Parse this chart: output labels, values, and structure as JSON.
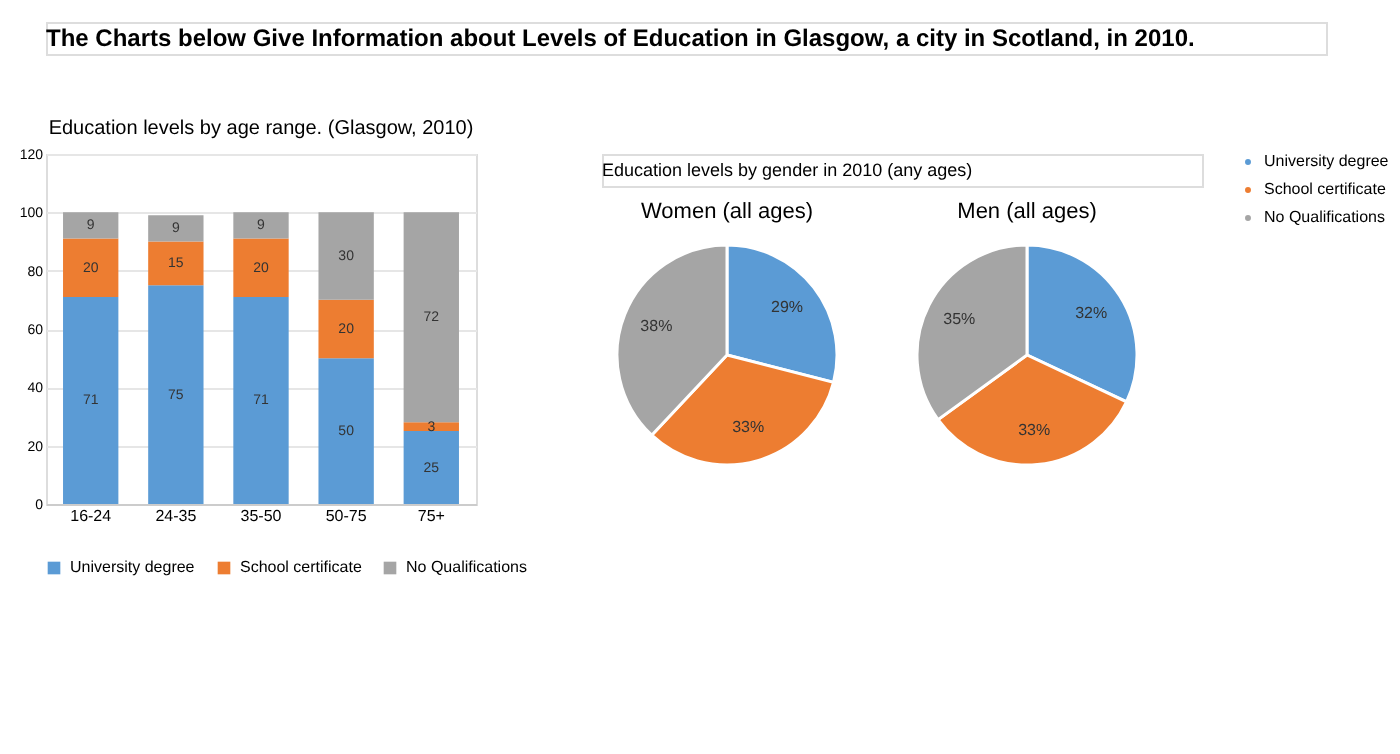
{
  "chart_data": [
    {
      "type": "bar",
      "title": "Education levels by age range. (Glasgow, 2010)",
      "annotations": [
        "The Charts below Give Information about Levels of Education in Glasgow, a city in Scotland, in 2010."
      ],
      "categories": [
        "16-24",
        "24-35",
        "35-50",
        "50-75",
        "75+"
      ],
      "stacked": true,
      "series": [
        {
          "name": "University degree",
          "color": "#5b9bd5",
          "values": [
            71,
            75,
            71,
            50,
            25
          ]
        },
        {
          "name": "School certificate",
          "color": "#ed7d31",
          "values": [
            20,
            15,
            20,
            20,
            3
          ]
        },
        {
          "name": "No Qualifications",
          "color": "#a5a5a5",
          "values": [
            9,
            9,
            9,
            30,
            72
          ]
        }
      ],
      "ylim": [
        0,
        120
      ],
      "yticks": [
        0,
        20,
        40,
        60,
        80,
        100,
        120
      ],
      "grid": "y",
      "legend": "bottom",
      "data_labels": true
    },
    {
      "type": "pie",
      "title": "Women (all ages)",
      "annotations": [
        "Education levels by gender in 2010 (any ages)"
      ],
      "categories": [
        "University degree",
        "School certificate",
        "No Qualifications"
      ],
      "values": [
        29,
        33,
        38
      ],
      "value_labels": [
        "29%",
        "33%",
        "38%"
      ],
      "colors": [
        "#5b9bd5",
        "#ed7d31",
        "#a5a5a5"
      ],
      "legend": "right"
    },
    {
      "type": "pie",
      "title": "Men (all ages)",
      "categories": [
        null,
        null,
        null
      ],
      "values": [
        32,
        33,
        35
      ],
      "value_labels": [
        "32%",
        "33%",
        "35%"
      ],
      "colors": [
        "#5b9bd5",
        "#ed7d31",
        "#a5a5a5"
      ]
    }
  ]
}
